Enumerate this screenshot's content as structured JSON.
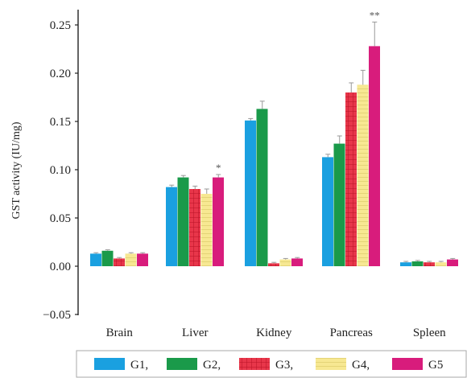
{
  "chart_data": {
    "type": "bar",
    "ylabel": "GST activity (IU/mg)",
    "xlabel": "",
    "ylim": [
      -0.05,
      0.26
    ],
    "yticks": [
      "0.25",
      "0.20",
      "0.15",
      "0.10",
      "0.05",
      "0.00",
      "−0.05"
    ],
    "ytick_values": [
      0.25,
      0.2,
      0.15,
      0.1,
      0.05,
      0.0,
      -0.05
    ],
    "categories": [
      "Brain",
      "Liver",
      "Kidney",
      "Pancreas",
      "Spleen"
    ],
    "series": [
      {
        "name": "G1,",
        "color": "#1aa0e0",
        "pattern": "solid",
        "values": [
          0.013,
          0.082,
          0.151,
          0.113,
          0.004
        ],
        "errors": [
          0.001,
          0.002,
          0.002,
          0.003,
          0.001
        ]
      },
      {
        "name": "G2,",
        "color": "#1a9a4a",
        "pattern": "solid",
        "values": [
          0.016,
          0.092,
          0.163,
          0.127,
          0.005
        ],
        "errors": [
          0.001,
          0.002,
          0.008,
          0.008,
          0.001
        ]
      },
      {
        "name": "G3,",
        "color": "#e8364a",
        "pattern": "grid",
        "values": [
          0.008,
          0.08,
          0.003,
          0.18,
          0.004
        ],
        "errors": [
          0.001,
          0.003,
          0.001,
          0.01,
          0.001
        ]
      },
      {
        "name": "G4,",
        "color": "#f5e27a",
        "pattern": "lined",
        "values": [
          0.013,
          0.075,
          0.007,
          0.188,
          0.004
        ],
        "errors": [
          0.001,
          0.005,
          0.001,
          0.015,
          0.001
        ]
      },
      {
        "name": "G5",
        "color": "#d81c7c",
        "pattern": "solid",
        "values": [
          0.013,
          0.092,
          0.008,
          0.228,
          0.007
        ],
        "errors": [
          0.001,
          0.003,
          0.001,
          0.025,
          0.001
        ]
      }
    ],
    "annotations": [
      {
        "category": "Liver",
        "series": "G5",
        "text": "*"
      },
      {
        "category": "Pancreas",
        "series": "G4",
        "text": "*"
      },
      {
        "category": "Pancreas",
        "series": "G5",
        "text": "**"
      }
    ],
    "legend_placement": "bottom",
    "grid": false
  }
}
